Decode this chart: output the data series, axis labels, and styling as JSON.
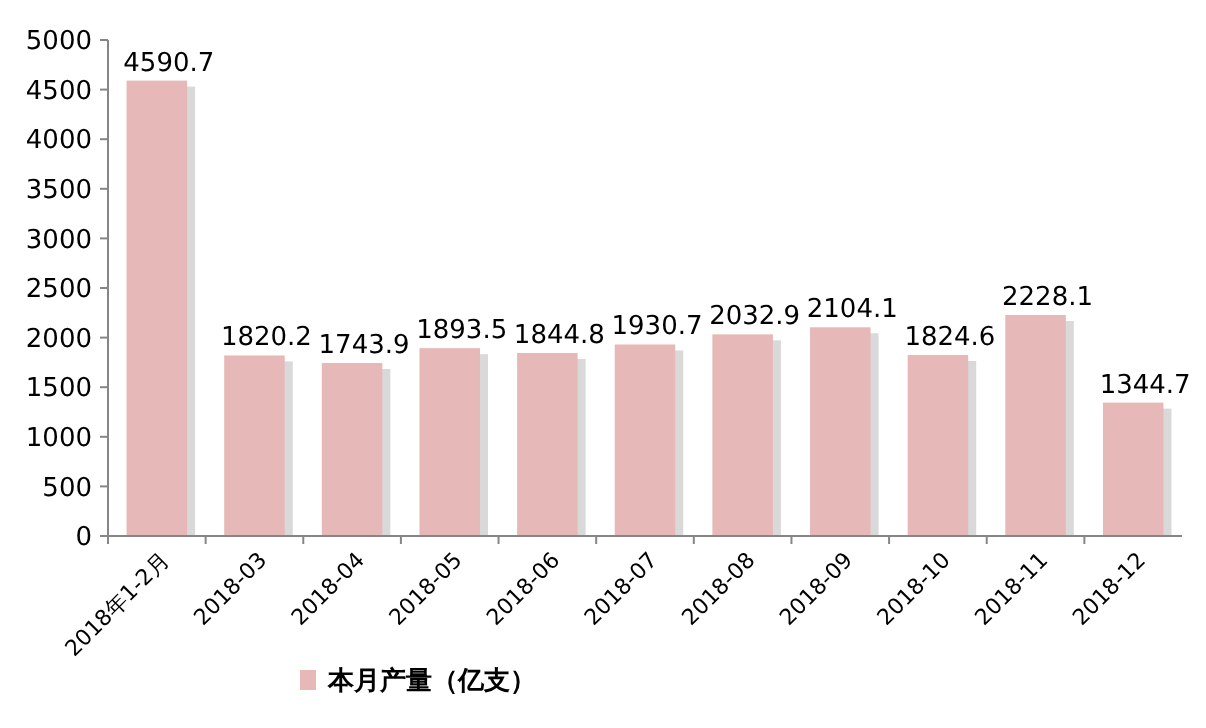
{
  "chart_data": {
    "type": "bar",
    "categories": [
      "2018年1-2月",
      "2018-03",
      "2018-04",
      "2018-05",
      "2018-06",
      "2018-07",
      "2018-08",
      "2018-09",
      "2018-10",
      "2018-11",
      "2018-12"
    ],
    "series": [
      {
        "name": "本月产量（亿支）",
        "color": "#e6b9b8",
        "values": [
          4590.7,
          1820.2,
          1743.9,
          1893.5,
          1844.8,
          1930.7,
          2032.9,
          2104.1,
          1824.6,
          2228.1,
          1344.7
        ]
      }
    ],
    "ylim": [
      0,
      5000
    ],
    "yticks": [
      0,
      500,
      1000,
      1500,
      2000,
      2500,
      3000,
      3500,
      4000,
      4500,
      5000
    ],
    "data_labels": true,
    "legend": "bottom",
    "grid": false
  }
}
